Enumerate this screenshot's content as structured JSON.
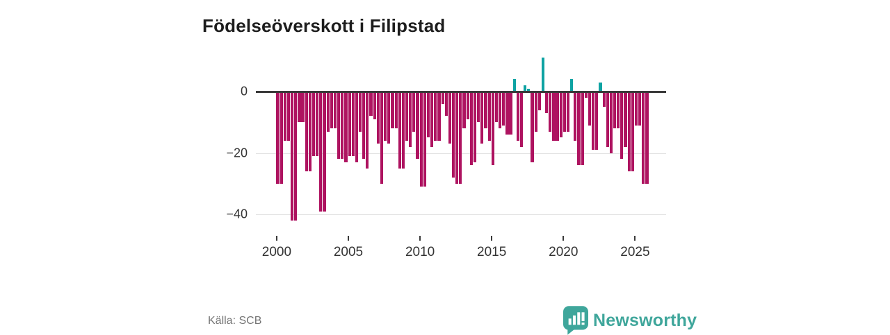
{
  "title": "Födelseöverskott i Filipstad",
  "source": "Källa: SCB",
  "branding": {
    "logo_text": "Newsworthy",
    "logo_icon": "newsworthy-speech-bubble-barchart",
    "logo_color": "#3fa69b"
  },
  "colors": {
    "negative_bar": "#ae1360",
    "positive_bar": "#0fa3a3",
    "axis_line": "#3a3a3a",
    "grid_line": "#e2e2e2",
    "tick_text": "#333333"
  },
  "y_axis": {
    "ticks": [
      0,
      -20,
      -40
    ],
    "labels": [
      "0",
      "−20",
      "−40"
    ]
  },
  "x_axis": {
    "years": [
      2000,
      2005,
      2010,
      2015,
      2020,
      2025
    ],
    "labels": [
      "2000",
      "2005",
      "2010",
      "2015",
      "2020",
      "2025"
    ]
  },
  "chart_data": {
    "type": "bar",
    "title": "Födelseöverskott i Filipstad",
    "xlabel": "",
    "ylabel": "",
    "ylim": [
      -44,
      13
    ],
    "grid": "horizontal",
    "legend_position": "none",
    "x": [
      "2000Q1",
      "2000Q2",
      "2000Q3",
      "2000Q4",
      "2001Q1",
      "2001Q2",
      "2001Q3",
      "2001Q4",
      "2002Q1",
      "2002Q2",
      "2002Q3",
      "2002Q4",
      "2003Q1",
      "2003Q2",
      "2003Q3",
      "2003Q4",
      "2004Q1",
      "2004Q2",
      "2004Q3",
      "2004Q4",
      "2005Q1",
      "2005Q2",
      "2005Q3",
      "2005Q4",
      "2006Q1",
      "2006Q2",
      "2006Q3",
      "2006Q4",
      "2007Q1",
      "2007Q2",
      "2007Q3",
      "2007Q4",
      "2008Q1",
      "2008Q2",
      "2008Q3",
      "2008Q4",
      "2009Q1",
      "2009Q2",
      "2009Q3",
      "2009Q4",
      "2010Q1",
      "2010Q2",
      "2010Q3",
      "2010Q4",
      "2011Q1",
      "2011Q2",
      "2011Q3",
      "2011Q4",
      "2012Q1",
      "2012Q2",
      "2012Q3",
      "2012Q4",
      "2013Q1",
      "2013Q2",
      "2013Q3",
      "2013Q4",
      "2014Q1",
      "2014Q2",
      "2014Q3",
      "2014Q4",
      "2015Q1",
      "2015Q2",
      "2015Q3",
      "2015Q4",
      "2016Q1",
      "2016Q2",
      "2016Q3",
      "2016Q4",
      "2017Q1",
      "2017Q2",
      "2017Q3",
      "2017Q4",
      "2018Q1",
      "2018Q2",
      "2018Q3",
      "2018Q4",
      "2019Q1",
      "2019Q2",
      "2019Q3",
      "2019Q4",
      "2020Q1",
      "2020Q2",
      "2020Q3",
      "2020Q4",
      "2021Q1",
      "2021Q2",
      "2021Q3",
      "2021Q4",
      "2022Q1",
      "2022Q2",
      "2022Q3",
      "2022Q4",
      "2023Q1",
      "2023Q2",
      "2023Q3",
      "2023Q4",
      "2024Q1",
      "2024Q2",
      "2024Q3",
      "2024Q4",
      "2025Q1",
      "2025Q2",
      "2025Q3",
      "2025Q4"
    ],
    "values": [
      -30,
      -30,
      -16,
      -16,
      -42,
      -42,
      -10,
      -10,
      -26,
      -26,
      -21,
      -21,
      -39,
      -39,
      -13,
      -12,
      -12,
      -22,
      -22,
      -23,
      -21,
      -21,
      -23,
      -13,
      -22,
      -25,
      -8,
      -9,
      -17,
      -30,
      -16,
      -17,
      -12,
      -12,
      -25,
      -25,
      -16,
      -18,
      -13,
      -22,
      -31,
      -31,
      -15,
      -18,
      -16,
      -16,
      -4,
      -8,
      -17,
      -28,
      -30,
      -30,
      -12,
      -9,
      -24,
      -23,
      -10,
      -17,
      -12,
      -16,
      -24,
      -10,
      -12,
      -11,
      -14,
      -14,
      4,
      -16,
      -18,
      2,
      1,
      -23,
      -13,
      -6,
      11,
      -7,
      -13,
      -16,
      -16,
      -15,
      -13,
      -13,
      4,
      -16,
      -24,
      -24,
      -2,
      -11,
      -19,
      -19,
      3,
      -5,
      -18,
      -20,
      -12,
      -12,
      -22,
      -18,
      -26,
      -26,
      -11,
      -11,
      -30,
      -30
    ]
  }
}
